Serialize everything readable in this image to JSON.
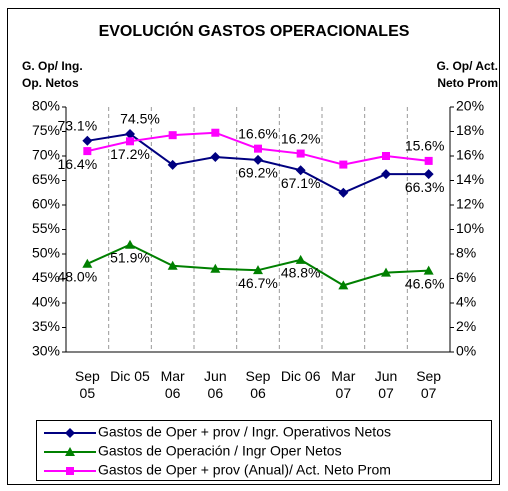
{
  "chart_data": {
    "type": "line",
    "title": "EVOLUCIÓN GASTOS OPERACIONALES",
    "y_label": "G. Op/ Ing. Op. Netos",
    "y2_label": "G. Op/ Act. Neto Prom",
    "categories": [
      "Sep 05",
      "Dic 05",
      "Mar 06",
      "Jun 06",
      "Sep 06",
      "Dic 06",
      "Mar 07",
      "Jun 07",
      "Sep 07"
    ],
    "ylim": [
      30,
      80
    ],
    "yticks": [
      {
        "value": 30,
        "label": "30%"
      },
      {
        "value": 35,
        "label": "35%"
      },
      {
        "value": 40,
        "label": "40%"
      },
      {
        "value": 45,
        "label": "45%"
      },
      {
        "value": 50,
        "label": "50%"
      },
      {
        "value": 55,
        "label": "55%"
      },
      {
        "value": 60,
        "label": "60%"
      },
      {
        "value": 65,
        "label": "65%"
      },
      {
        "value": 70,
        "label": "70%"
      },
      {
        "value": 75,
        "label": "75%"
      },
      {
        "value": 80,
        "label": "80%"
      }
    ],
    "y2lim": [
      0,
      20
    ],
    "y2ticks": [
      {
        "value": 0,
        "label": "0%"
      },
      {
        "value": 2,
        "label": "2%"
      },
      {
        "value": 4,
        "label": "4%"
      },
      {
        "value": 6,
        "label": "6%"
      },
      {
        "value": 8,
        "label": "8%"
      },
      {
        "value": 10,
        "label": "10%"
      },
      {
        "value": 12,
        "label": "12%"
      },
      {
        "value": 14,
        "label": "14%"
      },
      {
        "value": 16,
        "label": "16%"
      },
      {
        "value": 18,
        "label": "18%"
      },
      {
        "value": 20,
        "label": "20%"
      }
    ],
    "series": [
      {
        "name": "Gastos de Oper + prov / Ingr. Operativos Netos",
        "color": "#000080",
        "marker": "diamond",
        "values": [
          73.1,
          74.5,
          68.2,
          69.8,
          69.2,
          67.1,
          62.5,
          66.3,
          66.3
        ],
        "value_labels": [
          "73.1%",
          "74.5%",
          null,
          null,
          "69.2%",
          "67.1%",
          null,
          null,
          "66.3%"
        ]
      },
      {
        "name": "Gastos de Operación / Ingr Oper Netos",
        "color": "#008000",
        "marker": "triangle",
        "values": [
          48.0,
          51.9,
          47.6,
          47.0,
          46.7,
          48.8,
          43.6,
          46.2,
          46.6
        ],
        "value_labels": [
          "48.0%",
          "51.9%",
          null,
          null,
          "46.7%",
          "48.8%",
          null,
          null,
          "46.6%"
        ]
      },
      {
        "name": "Gastos de Oper + prov (Anual)/ Act. Neto Prom",
        "color": "#ff00ff",
        "marker": "square",
        "axis": "y2",
        "values": [
          16.4,
          17.2,
          17.7,
          17.9,
          16.6,
          16.2,
          15.3,
          16.0,
          15.6
        ],
        "value_labels": [
          "16.4%",
          "17.2%",
          null,
          null,
          "16.6%",
          "16.2%",
          null,
          null,
          "15.6%"
        ]
      }
    ],
    "legend": "bottom"
  }
}
